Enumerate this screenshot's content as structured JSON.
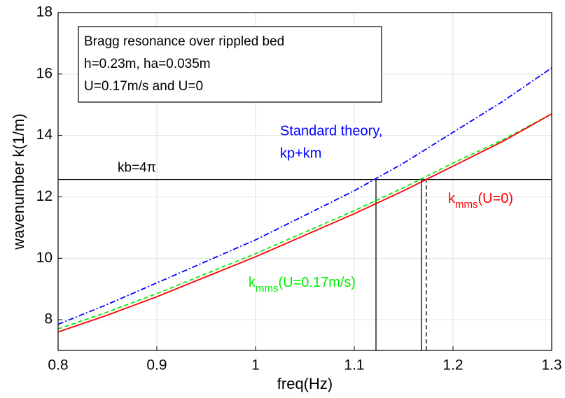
{
  "chart_data": {
    "type": "line",
    "xlabel": "freq(Hz)",
    "ylabel": "wavenumber k(1/m)",
    "x": [
      0.8,
      0.85,
      0.9,
      0.95,
      1.0,
      1.05,
      1.1,
      1.15,
      1.2,
      1.25,
      1.3
    ],
    "series": [
      {
        "color": "#0000ff",
        "dash": "dashdot",
        "values": [
          7.85,
          8.5,
          9.2,
          9.9,
          10.6,
          11.4,
          12.2,
          13.1,
          14.1,
          15.1,
          16.2
        ]
      },
      {
        "color": "#00ee00",
        "dash": "dashed",
        "values": [
          7.7,
          8.25,
          8.85,
          9.5,
          10.15,
          10.85,
          11.55,
          12.3,
          13.1,
          13.85,
          14.7
        ]
      },
      {
        "color": "#ff0000",
        "dash": "solid",
        "values": [
          7.6,
          8.15,
          8.75,
          9.4,
          10.05,
          10.75,
          11.45,
          12.2,
          13.0,
          13.8,
          14.7
        ]
      }
    ],
    "xlim": [
      0.8,
      1.3
    ],
    "ylim": [
      7,
      18
    ],
    "xticks": [
      {
        "value": 0.8,
        "label": "0.8"
      },
      {
        "value": 0.9,
        "label": "0.9"
      },
      1,
      {
        "value": 1.1,
        "label": "1.1"
      },
      {
        "value": 1.2,
        "label": "1.2"
      },
      {
        "value": 1.3,
        "label": "1.3"
      }
    ],
    "yticks": [
      8,
      10,
      12,
      14,
      16,
      18
    ],
    "grid": true,
    "hline": {
      "value": 12.566,
      "label": "kb=4π"
    },
    "vlines": [
      {
        "x": 1.122,
        "dash": "solid"
      },
      {
        "x": 1.168,
        "dash": "solid"
      },
      {
        "x": 1.173,
        "dash": "dashed"
      }
    ],
    "textbox": [
      "Bragg resonance over rippled bed",
      "h=0.23m, ha=0.035m",
      "U=0.17m/s and U=0"
    ],
    "annotations": [
      {
        "lines": [
          "Standard theory,",
          "kp+km"
        ],
        "color": "#0000ff"
      },
      {
        "main": "k",
        "sub": "mms",
        "rest": "(U=0)",
        "color": "#ff0000"
      },
      {
        "main": "k",
        "sub": "mms",
        "rest": "(U=0.17m/s)",
        "color": "#00ee00"
      }
    ]
  }
}
